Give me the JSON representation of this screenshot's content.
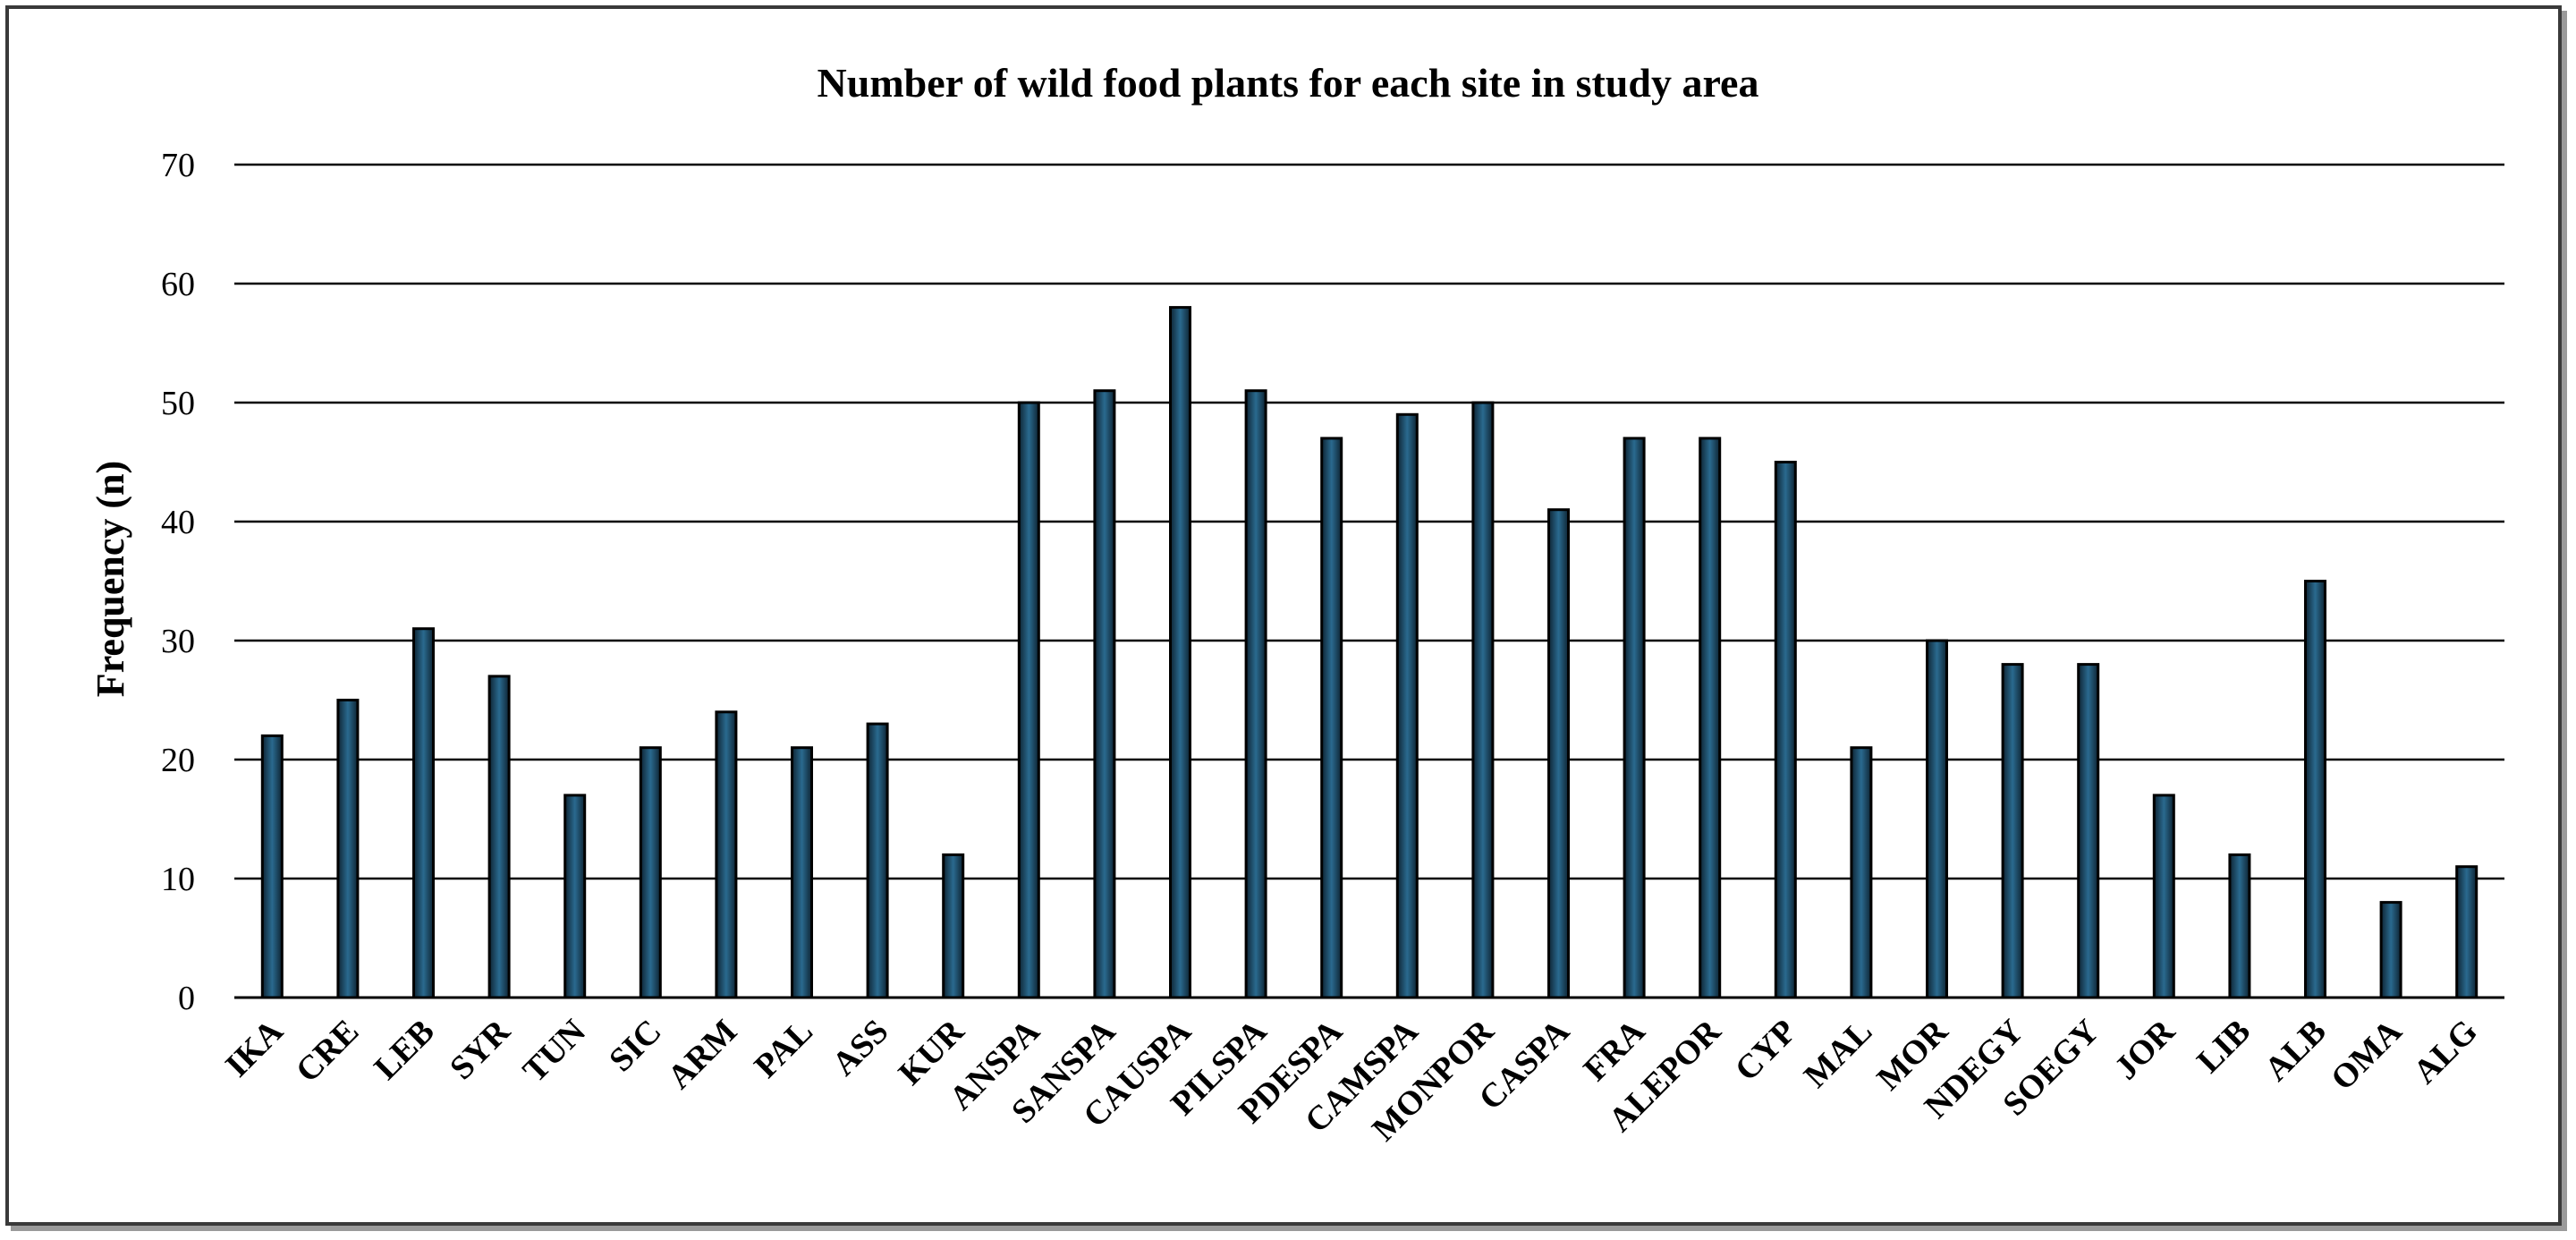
{
  "chart_data": {
    "type": "bar",
    "title": "Number of wild food plants for each site  in study area",
    "xlabel": "",
    "ylabel": "Frequency (n)",
    "ylim": [
      0,
      70
    ],
    "yticks": [
      0,
      10,
      20,
      30,
      40,
      50,
      60,
      70
    ],
    "grid": true,
    "categories": [
      "IKA",
      "CRE",
      "LEB",
      "SYR",
      "TUN",
      "SIC",
      "ARM",
      "PAL",
      "ASS",
      "KUR",
      "ANSPA",
      "SANSPA",
      "CAUSPA",
      "PILSPA",
      "PDESPA",
      "CAMSPA",
      "MONPOR",
      "CASPA",
      "FRA",
      "ALEPOR",
      "CYP",
      "MAL",
      "MOR",
      "NDEGY",
      "SOEGY",
      "JOR",
      "LIB",
      "ALB",
      "OMA",
      "ALG"
    ],
    "values": [
      22,
      25,
      31,
      27,
      17,
      21,
      24,
      21,
      23,
      12,
      50,
      51,
      58,
      51,
      47,
      49,
      50,
      41,
      47,
      47,
      45,
      21,
      30,
      28,
      28,
      17,
      12,
      35,
      8,
      11
    ],
    "bar_color": "#1c4a66",
    "bar_edge_color": "#000000",
    "grid_color": "#000000"
  }
}
